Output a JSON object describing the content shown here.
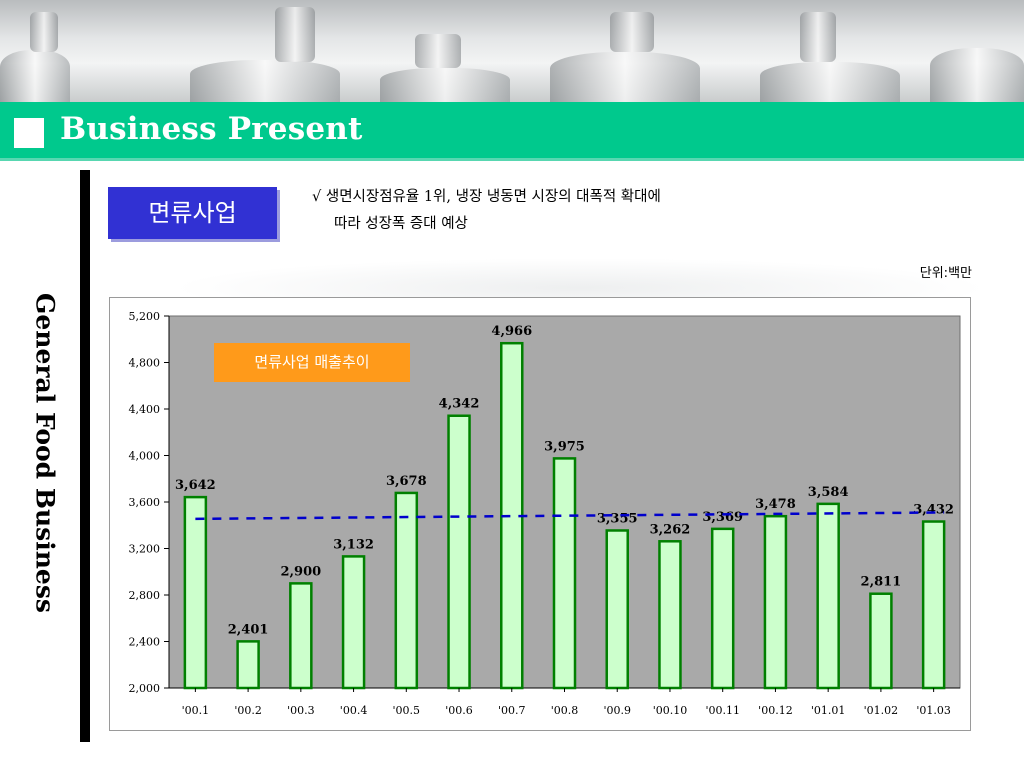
{
  "slide": {
    "title": "Business Present",
    "side_title": "General Food Business",
    "section_badge": "면류사업",
    "note_line1": "√  생면시장점유율 1위, 냉장 냉동면 시장의 대폭적 확대에",
    "note_line2": "따라 성장폭 증대 예상",
    "unit": "단위:백만"
  },
  "colors": {
    "title_bar": "#00c98d",
    "badge": "#3131d3",
    "plot_area": "#a9a9a9",
    "bar_fill": "#ccffcc",
    "bar_stroke": "#008000",
    "trend_line": "#0000cc",
    "legend_box": "#ff9a1a"
  },
  "chart_data": {
    "type": "bar",
    "legend_label": "면류사업 매출추이",
    "categories": [
      "'00.1",
      "'00.2",
      "'00.3",
      "'00.4",
      "'00.5",
      "'00.6",
      "'00.7",
      "'00.8",
      "'00.9",
      "'00.10",
      "'00.11",
      "'00.12",
      "'01.01",
      "'01.02",
      "'01.03"
    ],
    "values": [
      3642,
      2401,
      2900,
      3132,
      3678,
      4342,
      4966,
      3975,
      3355,
      3262,
      3369,
      3478,
      3584,
      2811,
      3432
    ],
    "value_labels": [
      "3,642",
      "2,401",
      "2,900",
      "3,132",
      "3,678",
      "4,342",
      "4,966",
      "3,975",
      "3,355",
      "3,262",
      "3,369",
      "3,478",
      "3,584",
      "2,811",
      "3,432"
    ],
    "ylim": [
      2000,
      5200
    ],
    "yticks": [
      2000,
      2400,
      2800,
      3200,
      3600,
      4000,
      4400,
      4800,
      5200
    ],
    "ytick_labels": [
      "2,000",
      "2,400",
      "2,800",
      "3,200",
      "3,600",
      "4,000",
      "4,400",
      "4,800",
      "5,200"
    ],
    "trendline": {
      "style": "dashed",
      "start": 3455,
      "end": 3510
    },
    "grid": false
  }
}
